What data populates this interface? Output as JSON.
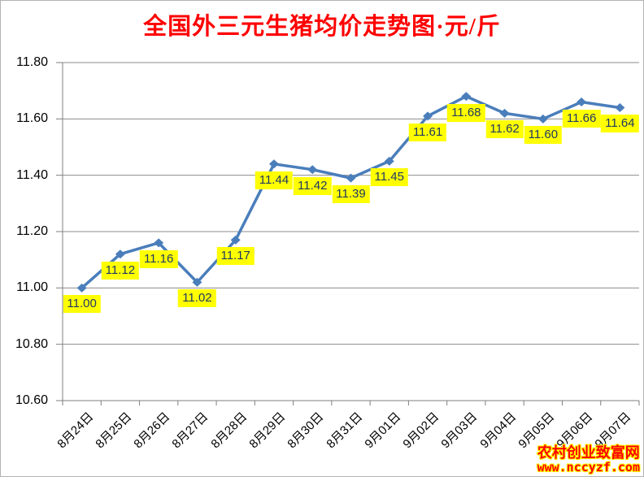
{
  "chart_data": {
    "type": "line",
    "title": "全国外三元生猪均价走势图·元/斤",
    "title_color": "#FF0000",
    "categories": [
      "8月24日",
      "8月25日",
      "8月26日",
      "8月27日",
      "8月28日",
      "8月29日",
      "8月30日",
      "8月31日",
      "9月01日",
      "9月02日",
      "9月03日",
      "9月04日",
      "9月05日",
      "9月06日",
      "9月07日"
    ],
    "values": [
      11.0,
      11.12,
      11.16,
      11.02,
      11.17,
      11.44,
      11.42,
      11.39,
      11.45,
      11.61,
      11.68,
      11.62,
      11.6,
      11.66,
      11.64
    ],
    "point_labels": [
      "11.00",
      "11.12",
      "11.16",
      "11.02",
      "11.17",
      "11.44",
      "11.42",
      "11.39",
      "11.45",
      "11.61",
      "11.68",
      "11.62",
      "11.60",
      "11.66",
      "11.64"
    ],
    "xlabel": "",
    "ylabel": "",
    "ylim": [
      10.6,
      11.8
    ],
    "ytick_step": 0.2,
    "ytick_labels": [
      "11.80",
      "11.60",
      "11.40",
      "11.20",
      "11.00",
      "10.80",
      "10.60"
    ],
    "grid": true,
    "legend": "none",
    "marker": "diamond",
    "line_color": "#4A7EBB",
    "grid_color": "#8C8C8C",
    "axis_color": "#7F7F7F",
    "data_label_bg": "#FFFF00",
    "data_label_color": "#1F3864"
  },
  "watermark": {
    "line1": "农村创业致富网",
    "line2": "www.nccyzf.com",
    "color": "#FF0000",
    "outline_color": "#FFFF00"
  }
}
